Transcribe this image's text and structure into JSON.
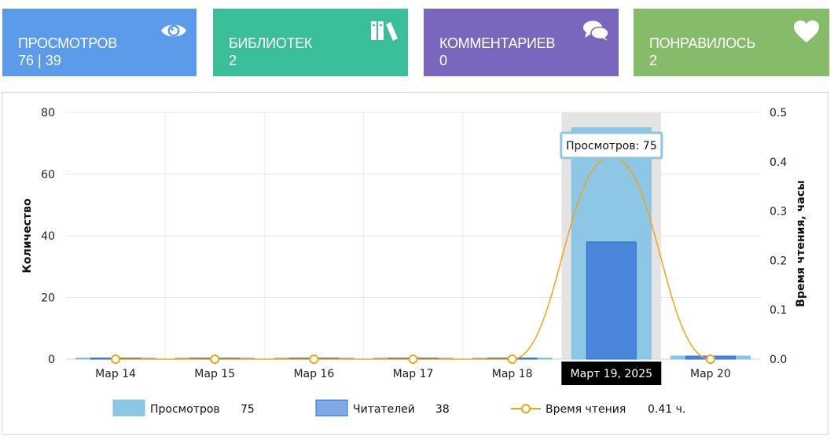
{
  "cards": [
    {
      "id": "views",
      "label": "ПРОСМОТРОВ",
      "value": "76 | 39",
      "color": "#5b9be9",
      "icon": "eye-icon"
    },
    {
      "id": "libs",
      "label": "БИБЛИОТЕК",
      "value": "2",
      "color": "#3bbf9a",
      "icon": "books-icon"
    },
    {
      "id": "comments",
      "label": "КОММЕНТАРИЕВ",
      "value": "0",
      "color": "#7a67bd",
      "icon": "comments-icon"
    },
    {
      "id": "likes",
      "label": "ПОНРАВИЛОСЬ",
      "value": "2",
      "color": "#86bb6a",
      "icon": "heart-icon"
    }
  ],
  "chart_data": {
    "type": "bar",
    "categories": [
      "Мар 14",
      "Мар 15",
      "Мар 16",
      "Мар 17",
      "Мар 18",
      "Мар 19",
      "Мар 20"
    ],
    "series": [
      {
        "name": "Просмотров",
        "values": [
          0,
          0,
          0,
          0,
          0,
          75,
          1
        ],
        "color": "#8ec7e5"
      },
      {
        "name": "Читателей",
        "values": [
          0,
          0,
          0,
          0,
          0,
          38,
          1
        ],
        "color": "#4a86dc"
      },
      {
        "name": "Время чтения",
        "values": [
          0,
          0,
          0,
          0,
          0,
          0.41,
          0
        ],
        "color": "#f0a31c",
        "axis": "right"
      }
    ],
    "ylabel": "Количество",
    "ylim": [
      0,
      80
    ],
    "yticks": [
      0,
      20,
      40,
      60,
      80
    ],
    "y2label": "Время чтения, часы",
    "y2lim": [
      0,
      0.5
    ],
    "y2ticks": [
      "0.0",
      "0.1",
      "0.2",
      "0.3",
      "0.4",
      "0.5"
    ],
    "grid": true,
    "highlight_index": 5,
    "tooltip": "Просмотров: 75",
    "crosshair_label": "Март 19, 2025",
    "legend": [
      {
        "label": "Просмотров",
        "value": "75"
      },
      {
        "label": "Читателей",
        "value": "38"
      },
      {
        "label": "Время чтения",
        "value": "0.41 ч."
      }
    ]
  }
}
